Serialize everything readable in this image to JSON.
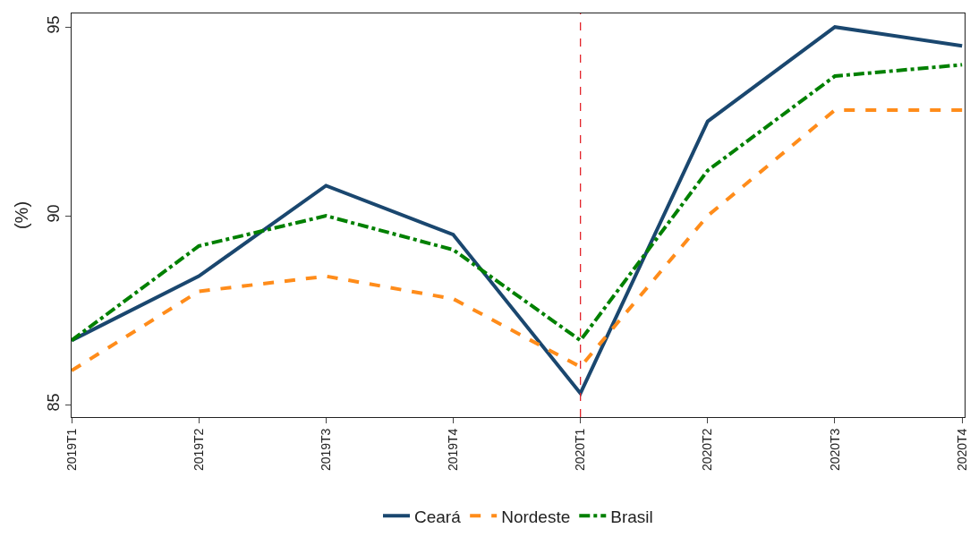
{
  "chart_data": {
    "type": "line",
    "ylabel": "(%)",
    "categories": [
      "2019T1",
      "2019T2",
      "2019T3",
      "2019T4",
      "2020T1",
      "2020T2",
      "2020T3",
      "2020T4"
    ],
    "series": [
      {
        "name": "Ceará",
        "color": "#1a476f",
        "line_style": "solid",
        "values": [
          86.7,
          88.4,
          90.8,
          89.5,
          85.3,
          92.5,
          95.0,
          94.5
        ]
      },
      {
        "name": "Nordeste",
        "color": "#ff8c1a",
        "line_style": "dashed",
        "values": [
          85.9,
          88.0,
          88.4,
          87.8,
          86.0,
          90.0,
          92.8,
          92.8
        ]
      },
      {
        "name": "Brasil",
        "color": "#008000",
        "line_style": "dashdot",
        "values": [
          86.7,
          89.2,
          90.0,
          89.1,
          86.7,
          91.2,
          93.7,
          94.0
        ]
      }
    ],
    "ylim": [
      84.67,
      95.36
    ],
    "yticks": [
      85,
      90,
      95
    ],
    "ref_lines": [
      {
        "axis": "x",
        "value": "2020T1",
        "color": "#e3242b",
        "line_style": "dashed"
      }
    ],
    "grid": false,
    "legend": "bottom",
    "marker": "none"
  }
}
